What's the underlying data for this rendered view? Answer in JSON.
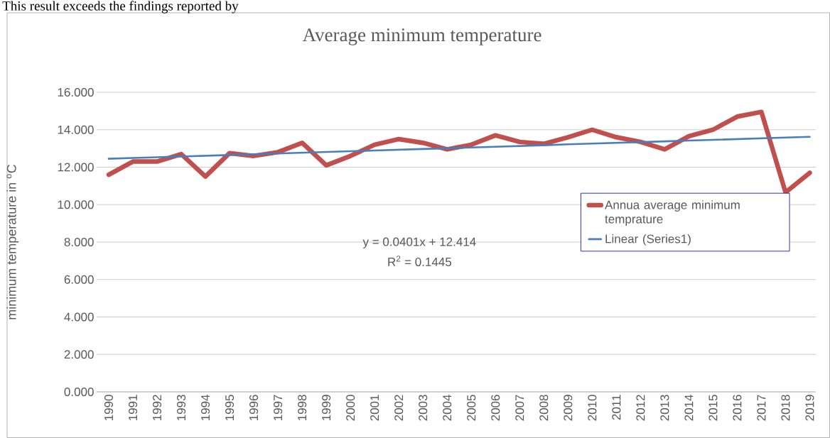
{
  "chart_data": {
    "type": "line",
    "title": "Average minimum  temperature",
    "ylabel": "minimum temperature in $^{o}$C",
    "categories": [
      "1990",
      "1991",
      "1992",
      "1993",
      "1994",
      "1995",
      "1996",
      "1997",
      "1998",
      "1999",
      "2000",
      "2001",
      "2002",
      "2003",
      "2004",
      "2005",
      "2006",
      "2007",
      "2008",
      "2009",
      "2010",
      "2011",
      "2012",
      "2013",
      "2014",
      "2015",
      "2016",
      "2017",
      "2018",
      "2019"
    ],
    "series": [
      {
        "name": "Annua average minimum temprature",
        "color": "#c0504d",
        "values": [
          11.6,
          12.3,
          12.3,
          12.7,
          11.5,
          12.75,
          12.6,
          12.8,
          13.3,
          12.1,
          12.6,
          13.2,
          13.5,
          13.3,
          12.95,
          13.2,
          13.7,
          13.35,
          13.25,
          13.6,
          14.0,
          13.6,
          13.35,
          12.95,
          13.65,
          14.0,
          14.7,
          14.95,
          10.65,
          11.7
        ]
      },
      {
        "name": "Linear (Series1)",
        "color": "#4a7ebb",
        "values": [
          12.45,
          12.49,
          12.53,
          12.57,
          12.61,
          12.65,
          12.69,
          12.73,
          12.77,
          12.81,
          12.85,
          12.89,
          12.93,
          12.97,
          13.01,
          13.05,
          13.09,
          13.13,
          13.17,
          13.22,
          13.26,
          13.3,
          13.34,
          13.38,
          13.42,
          13.46,
          13.5,
          13.54,
          13.58,
          13.62
        ]
      }
    ],
    "ylim": [
      0,
      16
    ],
    "yticks": [
      {
        "value": 0,
        "label": "0.000"
      },
      {
        "value": 2,
        "label": "2.000"
      },
      {
        "value": 4,
        "label": "4.000"
      },
      {
        "value": 6,
        "label": "6.000"
      },
      {
        "value": 8,
        "label": "8.000"
      },
      {
        "value": 10,
        "label": "10.000"
      },
      {
        "value": 12,
        "label": "12.000"
      },
      {
        "value": 14,
        "label": "14.000"
      },
      {
        "value": 16,
        "label": "16.000"
      }
    ],
    "grid": "y",
    "legend": "right",
    "marker": "none",
    "line_style": "solid",
    "annotations": [
      "y = 0.0401x + 12.414",
      "R$^{2}$ = 0.1445",
      "This result exceeds the findings reported by"
    ]
  }
}
